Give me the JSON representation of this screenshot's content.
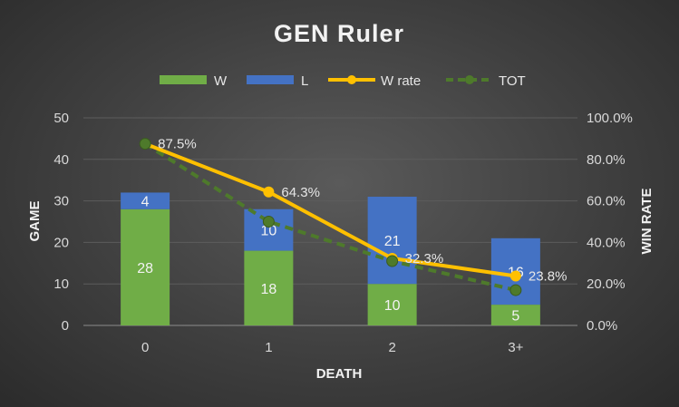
{
  "chart_data": {
    "type": "bar",
    "stacked": true,
    "title": "GEN Ruler",
    "xlabel": "DEATH",
    "ylabel": "GAME",
    "y2label": "WIN RATE",
    "categories": [
      "0",
      "1",
      "2",
      "3+"
    ],
    "ylim": [
      0,
      50
    ],
    "yticks": [
      "0",
      "10",
      "20",
      "30",
      "40",
      "50"
    ],
    "y2lim": [
      0,
      100
    ],
    "y2ticks": [
      "0.0%",
      "20.0%",
      "40.0%",
      "60.0%",
      "80.0%",
      "100.0%"
    ],
    "grid": true,
    "legend_position": "top",
    "series": [
      {
        "name": "W",
        "type": "bar",
        "values": [
          28,
          18,
          10,
          5
        ],
        "labels": [
          "28",
          "18",
          "10",
          "5"
        ],
        "color": "#70ad47"
      },
      {
        "name": "L",
        "type": "bar",
        "values": [
          4,
          10,
          21,
          16
        ],
        "labels": [
          "4",
          "10",
          "21",
          "16"
        ],
        "color": "#4472c4"
      },
      {
        "name": "W rate",
        "type": "line",
        "axis": "secondary",
        "values": [
          87.5,
          64.3,
          32.3,
          23.8
        ],
        "labels": [
          "87.5%",
          "64.3%",
          "32.3%",
          "23.8%"
        ],
        "color": "#ffc000"
      },
      {
        "name": "TOT",
        "type": "line",
        "axis": "secondary",
        "dashed": true,
        "values": [
          87.5,
          50.0,
          31.0,
          17.0
        ],
        "color": "#4e7a2b"
      }
    ]
  }
}
